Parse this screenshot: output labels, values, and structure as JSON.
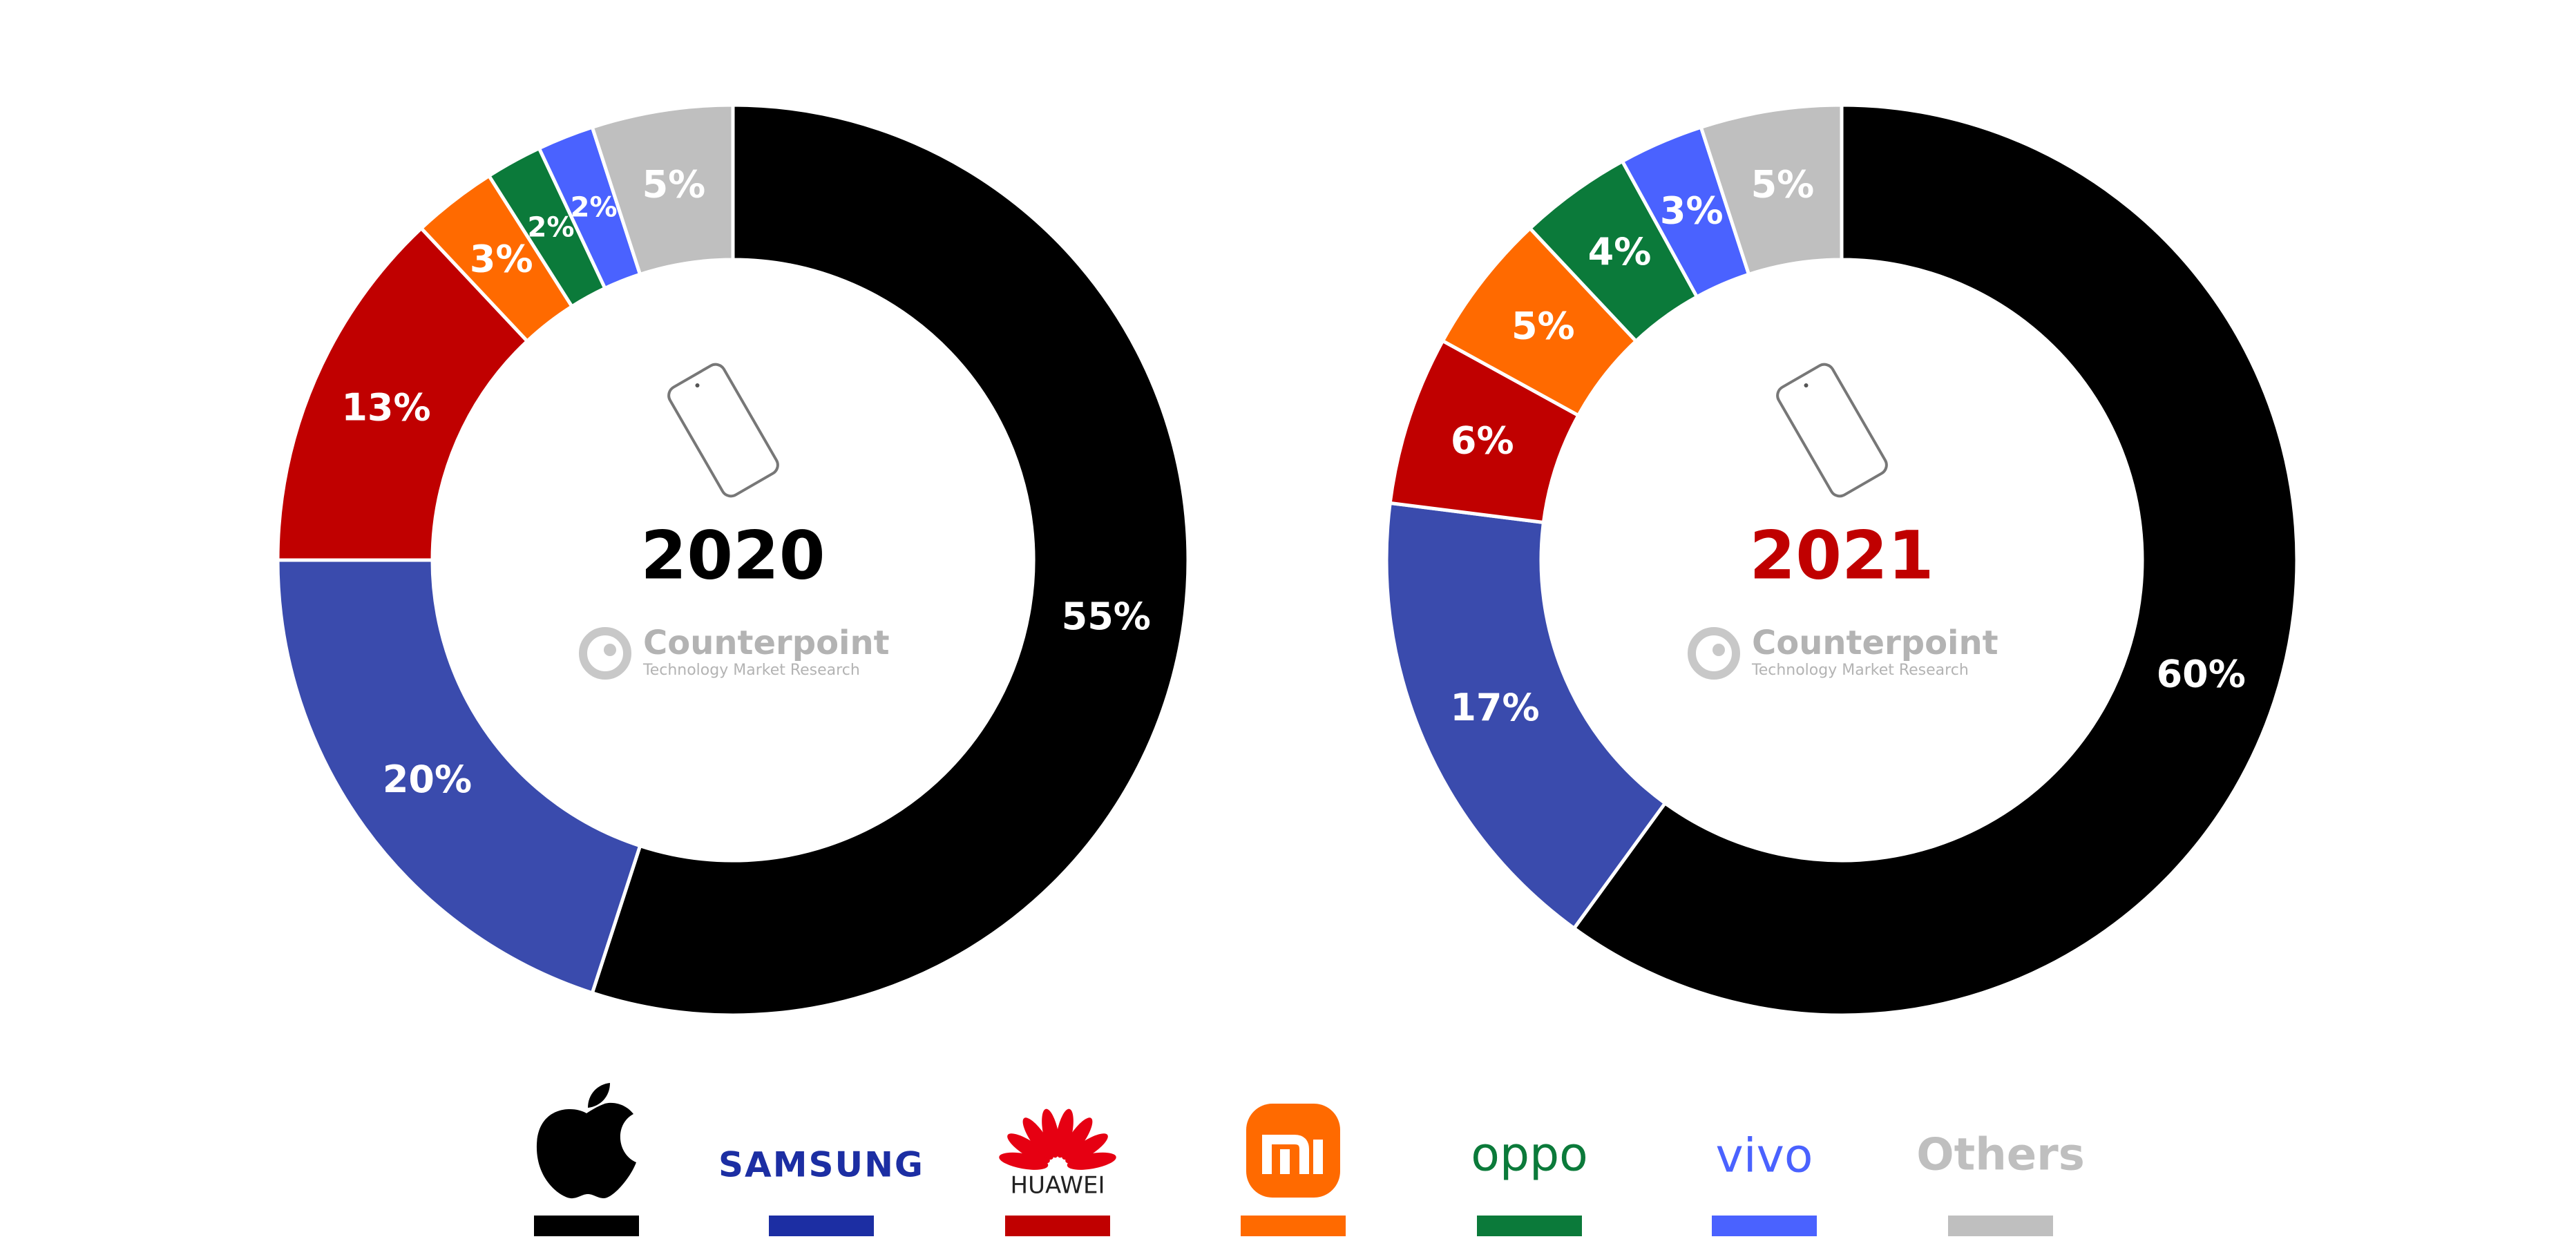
{
  "chart_data": [
    {
      "type": "pie",
      "title": "2020",
      "title_color": "#000000",
      "values": [
        55,
        20,
        13,
        3,
        2,
        2,
        5
      ],
      "value_labels": [
        "55%",
        "20%",
        "13%",
        "3%",
        "2%",
        "2%",
        "5%"
      ],
      "colors": [
        "#000000",
        "#3a4bad",
        "#c00000",
        "#ff6a00",
        "#0b7a3a",
        "#4a62ff",
        "#bfbfbf"
      ]
    },
    {
      "type": "pie",
      "title": "2021",
      "title_color": "#c00000",
      "values": [
        60,
        17,
        6,
        5,
        4,
        3,
        5
      ],
      "value_labels": [
        "60%",
        "17%",
        "6%",
        "5%",
        "4%",
        "3%",
        "5%"
      ],
      "colors": [
        "#000000",
        "#3a4bad",
        "#c00000",
        "#ff6a00",
        "#0b7a3a",
        "#4a62ff",
        "#bfbfbf"
      ]
    }
  ],
  "watermark": {
    "name": "Counterpoint",
    "tagline": "Technology Market Research"
  },
  "legend": {
    "items": [
      {
        "color": "#000000"
      },
      {
        "label": "SAMSUNG",
        "color": "#1c2ea3"
      },
      {
        "label": "HUAWEI",
        "color": "#c00000"
      },
      {
        "color": "#ff6a00"
      },
      {
        "label": "oppo",
        "color": "#0b7a3a"
      },
      {
        "label": "vivo",
        "color": "#4a62ff"
      },
      {
        "label": "Others",
        "color": "#bfbfbf"
      }
    ]
  }
}
